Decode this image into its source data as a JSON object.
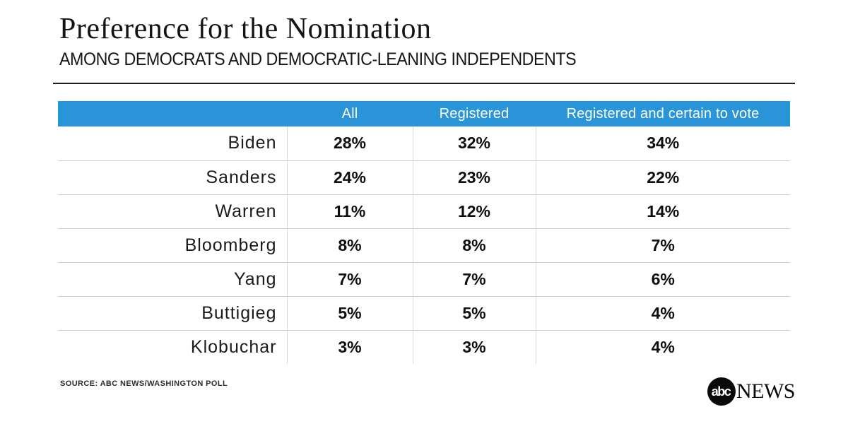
{
  "chart_data": {
    "type": "table",
    "title": "Preference for the Nomination",
    "subtitle": "AMONG DEMOCRATS AND DEMOCRATIC-LEANING INDEPENDENTS",
    "columns": [
      "",
      "All",
      "Registered",
      "Registered and certain to vote"
    ],
    "rows": [
      [
        "Biden",
        "28%",
        "32%",
        "34%"
      ],
      [
        "Sanders",
        "24%",
        "23%",
        "22%"
      ],
      [
        "Warren",
        "11%",
        "12%",
        "14%"
      ],
      [
        "Bloomberg",
        "8%",
        "8%",
        "7%"
      ],
      [
        "Yang",
        "7%",
        "7%",
        "6%"
      ],
      [
        "Buttigieg",
        "5%",
        "5%",
        "4%"
      ],
      [
        "Klobuchar",
        "3%",
        "3%",
        "4%"
      ]
    ],
    "legend_position": "none",
    "grid": "row-dividers"
  },
  "colors": {
    "header_bg": "#2994d8",
    "header_text": "#ffffff",
    "row_divider": "#c9c9c9",
    "column_divider": "#d8d8d8",
    "text": "#141414",
    "logo_bg": "#0a0a0a"
  },
  "footer": {
    "source": "SOURCE: ABC NEWS/WASHINGTON POLL",
    "logo_abc": "abc",
    "logo_news": "NEWS"
  }
}
